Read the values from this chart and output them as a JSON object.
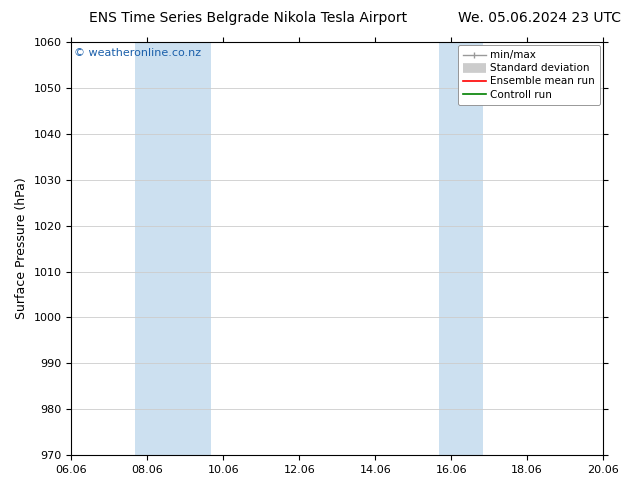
{
  "title_left": "ENS Time Series Belgrade Nikola Tesla Airport",
  "title_right": "We. 05.06.2024 23 UTC",
  "ylabel": "Surface Pressure (hPa)",
  "ylim": [
    970,
    1060
  ],
  "yticks": [
    970,
    980,
    990,
    1000,
    1010,
    1020,
    1030,
    1040,
    1050,
    1060
  ],
  "xtick_labels": [
    "06.06",
    "08.06",
    "10.06",
    "12.06",
    "14.06",
    "16.06",
    "18.06",
    "20.06"
  ],
  "xtick_positions": [
    6,
    8,
    10,
    12,
    14,
    16,
    18,
    20
  ],
  "xlim": [
    6,
    20
  ],
  "shaded_regions": [
    {
      "x_start": 7.67,
      "x_end": 9.67
    },
    {
      "x_start": 15.67,
      "x_end": 16.83
    }
  ],
  "shaded_color": "#cce0f0",
  "watermark": "© weatheronline.co.nz",
  "watermark_color": "#1a5faa",
  "background_color": "#ffffff",
  "grid_color": "#cccccc",
  "title_fontsize": 10,
  "ylabel_fontsize": 9,
  "tick_fontsize": 8,
  "legend_fontsize": 7.5,
  "legend_items": [
    {
      "label": "min/max",
      "color": "#aaaaaa",
      "lw": 1.0,
      "style": "minmax"
    },
    {
      "label": "Standard deviation",
      "color": "#cccccc",
      "lw": 7,
      "style": "bar"
    },
    {
      "label": "Ensemble mean run",
      "color": "red",
      "lw": 1.2,
      "style": "line"
    },
    {
      "label": "Controll run",
      "color": "green",
      "lw": 1.2,
      "style": "line"
    }
  ]
}
